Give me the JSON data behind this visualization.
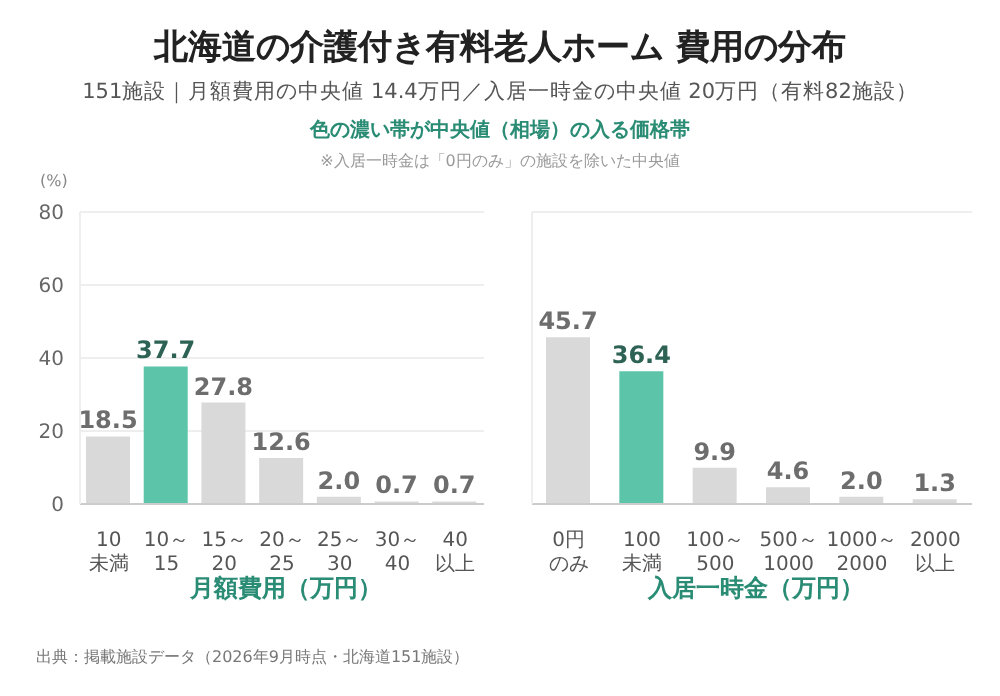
{
  "chart_data": [
    {
      "type": "bar",
      "title": "北海道の介護付き有料老人ホーム 費用の分布",
      "subtitle": "151施設｜月額費用の中央値 14.4万円／入居一時金の中央値 20万円（有料82施設）",
      "annotations": [
        "色の濃い帯が中央値（相場）の入る価格帯",
        "※入居一時金は「0円のみ」の施設を除いた中央値",
        "出典：掲載施設データ（2026年9月時点・北海道151施設）"
      ],
      "ylabel": "(%)",
      "xlabel": "月額費用（万円）",
      "categories": [
        "10\n未満",
        "10～\n15",
        "15～\n20",
        "20～\n25",
        "25～\n30",
        "30～\n40",
        "40\n以上"
      ],
      "values": [
        18.5,
        37.7,
        27.8,
        12.6,
        2.0,
        0.7,
        0.7
      ],
      "value_labels": [
        "18.5",
        "37.7",
        "27.8",
        "12.6",
        "2.0",
        "0.7",
        "0.7"
      ],
      "colors": [
        "#d9d9d9",
        "#5cc4a8",
        "#d9d9d9",
        "#d9d9d9",
        "#d9d9d9",
        "#d9d9d9",
        "#d9d9d9"
      ],
      "ylim": [
        0,
        80
      ],
      "yticks": [
        0,
        20,
        40,
        60,
        80
      ],
      "grid": "y"
    },
    {
      "type": "bar",
      "xlabel": "入居一時金（万円）",
      "categories": [
        "0円のみ",
        "100\n未満",
        "100～\n500",
        "500～\n1000",
        "1000～\n2000",
        "2000\n以上"
      ],
      "values": [
        45.7,
        36.4,
        9.9,
        4.6,
        2.0,
        1.3
      ],
      "value_labels": [
        "45.7",
        "36.4",
        "9.9",
        "4.6",
        "2.0",
        "1.3"
      ],
      "colors": [
        "#d9d9d9",
        "#5cc4a8",
        "#d9d9d9",
        "#d9d9d9",
        "#d9d9d9",
        "#d9d9d9"
      ],
      "ylim": [
        0,
        80
      ],
      "yticks": [
        0,
        20,
        40,
        60,
        80
      ],
      "grid": "y",
      "tick_labels": "x"
    }
  ]
}
